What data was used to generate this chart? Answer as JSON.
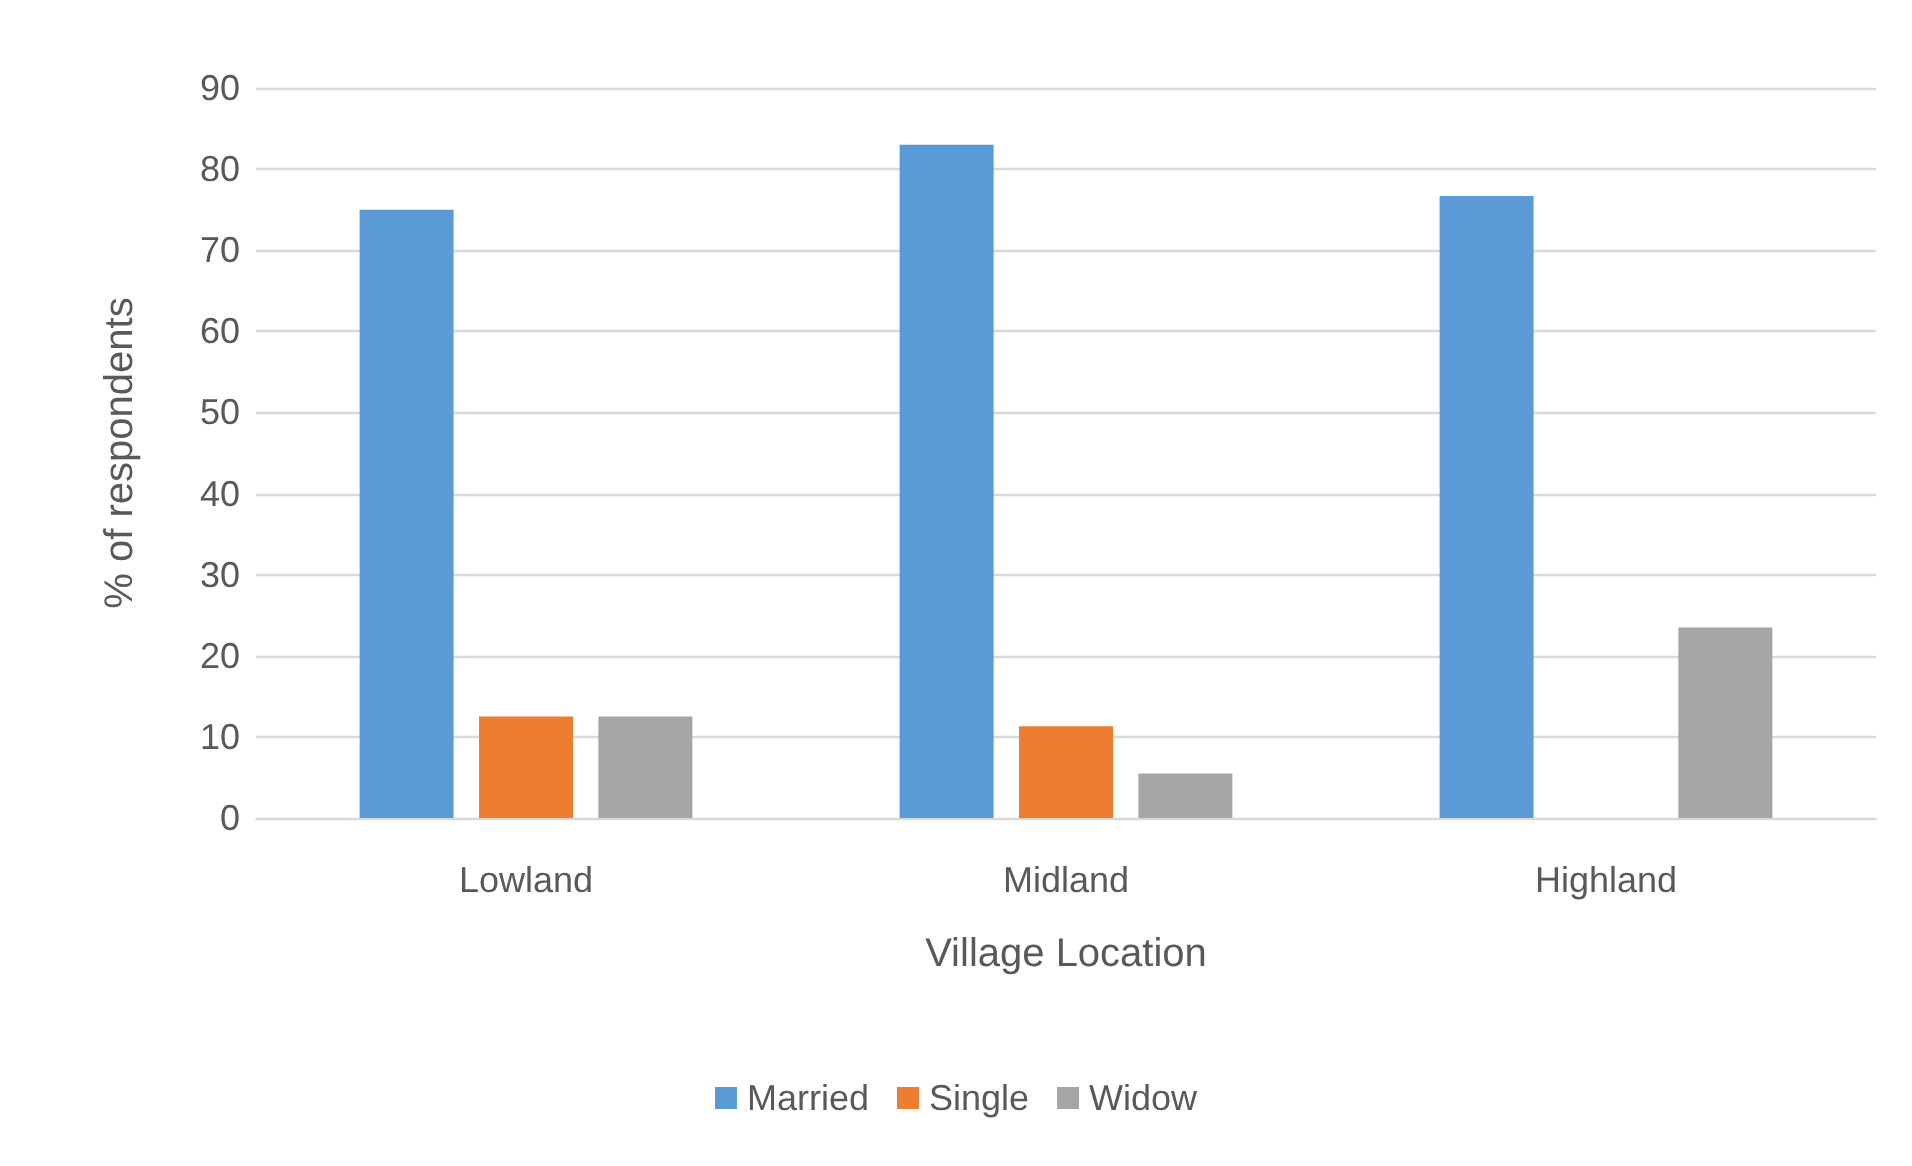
{
  "chart_data": {
    "type": "bar",
    "xlabel": "Village Location",
    "ylabel": "% of respondents",
    "categories": [
      "Lowland",
      "Midland",
      "Highland"
    ],
    "series": [
      {
        "name": "Married",
        "color": "#5b9bd5",
        "values": [
          75,
          83,
          76.7
        ]
      },
      {
        "name": "Single",
        "color": "#ed7d31",
        "values": [
          12.5,
          11.3,
          0
        ]
      },
      {
        "name": "Widow",
        "color": "#a5a5a5",
        "values": [
          12.5,
          5.5,
          23.5
        ]
      }
    ],
    "ylim": [
      0,
      90
    ],
    "yticks": [
      0,
      10,
      20,
      30,
      40,
      50,
      60,
      70,
      80,
      90
    ],
    "grid": "y",
    "legend": "bottom"
  }
}
